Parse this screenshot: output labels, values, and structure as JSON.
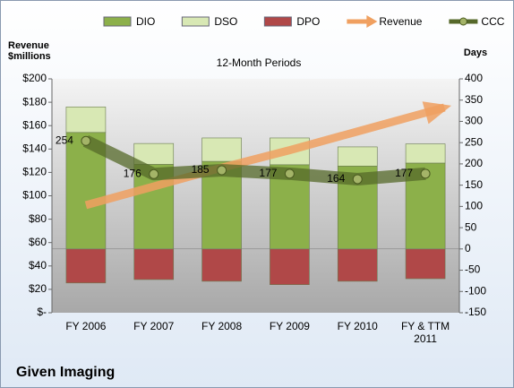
{
  "chart_data": {
    "type": "bar",
    "title": "12-Month Periods",
    "footer": "Given Imaging",
    "y_label": "Revenue $millions",
    "y2_label": "Days",
    "categories": [
      "FY 2006",
      "FY 2007",
      "FY 2008",
      "FY 2009",
      "FY 2010",
      "FY & TTM 2011"
    ],
    "ylim": [
      0,
      200
    ],
    "yticks": [
      {
        "value": 0,
        "label": "$-"
      },
      {
        "value": 20,
        "label": "$20"
      },
      {
        "value": 40,
        "label": "$40"
      },
      {
        "value": 60,
        "label": "$60"
      },
      {
        "value": 80,
        "label": "$80"
      },
      {
        "value": 100,
        "label": "$100"
      },
      {
        "value": 120,
        "label": "$120"
      },
      {
        "value": 140,
        "label": "$140"
      },
      {
        "value": 160,
        "label": "$160"
      },
      {
        "value": 180,
        "label": "$180"
      },
      {
        "value": 200,
        "label": "$200"
      }
    ],
    "y2lim": [
      -150,
      400
    ],
    "y2ticks": [
      -150,
      -100,
      -50,
      0,
      50,
      100,
      150,
      200,
      250,
      300,
      350,
      400
    ],
    "series": [
      {
        "name": "DIO",
        "type": "bar",
        "axis": "y2",
        "color": "#8cb04a",
        "values": [
          274,
          199,
          206,
          198,
          195,
          202
        ]
      },
      {
        "name": "DSO",
        "type": "bar",
        "axis": "y2",
        "color": "#d8e8b4",
        "values": [
          60,
          49,
          55,
          63,
          45,
          45
        ]
      },
      {
        "name": "DPO",
        "type": "bar",
        "axis": "y2",
        "color": "#b04848",
        "values": [
          -80,
          -72,
          -76,
          -84,
          -76,
          -70
        ]
      },
      {
        "name": "Revenue",
        "type": "arrow",
        "axis": "y",
        "color": "#f0a060",
        "values": [
          92,
          108,
          124,
          139,
          155,
          171
        ]
      },
      {
        "name": "CCC",
        "type": "line",
        "axis": "y2",
        "color": "#56692a",
        "values": [
          254,
          176,
          185,
          177,
          164,
          177
        ]
      }
    ]
  }
}
